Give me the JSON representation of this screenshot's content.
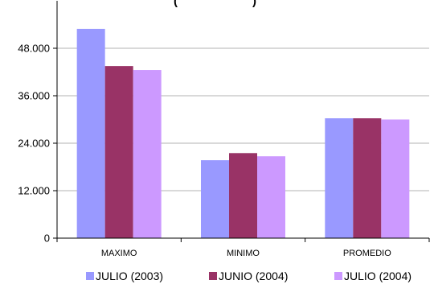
{
  "chart_data": {
    "type": "bar",
    "title": "(… …)",
    "categories": [
      "MAXIMO",
      "MINIMO",
      "PROMEDIO"
    ],
    "series": [
      {
        "name": "JULIO (2003)",
        "color": "#9999FF",
        "values": [
          52900,
          19700,
          30300
        ]
      },
      {
        "name": "JUNIO (2004)",
        "color": "#993366",
        "values": [
          43500,
          21500,
          30300
        ]
      },
      {
        "name": "JULIO (2004)",
        "color": "#CC99FF",
        "values": [
          42500,
          20700,
          30000
        ]
      }
    ],
    "yticks": [
      "0",
      "12.000",
      "24.000",
      "36.000",
      "48.000"
    ],
    "ytick_values": [
      0,
      12000,
      24000,
      36000,
      48000
    ],
    "ylim": [
      0,
      60000
    ],
    "xlabel": "",
    "ylabel": "",
    "grid": true,
    "legend_position": "bottom"
  }
}
